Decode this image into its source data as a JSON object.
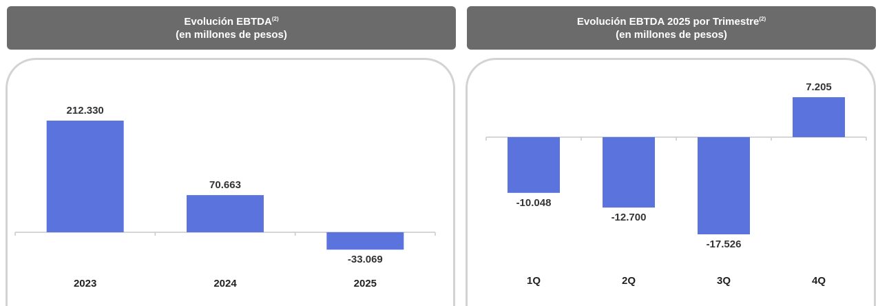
{
  "chart_data": [
    {
      "type": "bar",
      "title": "Evolución EBTDA",
      "title_sup": "(2)",
      "subtitle": "(en millones de pesos)",
      "categories": [
        "2023",
        "2024",
        "2025"
      ],
      "values": [
        212330,
        70663,
        -33069
      ],
      "value_labels": [
        "212.330",
        "70.663",
        "-33.069"
      ],
      "bar_color": "#5b73dd",
      "grid": false,
      "legend": "none"
    },
    {
      "type": "bar",
      "title": "Evolución EBTDA 2025 por Trimestre",
      "title_sup": "(2)",
      "subtitle": "(en millones de pesos)",
      "categories": [
        "1Q",
        "2Q",
        "3Q",
        "4Q"
      ],
      "values": [
        -10048,
        -12700,
        -17526,
        7205
      ],
      "value_labels": [
        "-10.048",
        "-12.700",
        "-17.526",
        "7.205"
      ],
      "bar_color": "#5b73dd",
      "grid": false,
      "legend": "none"
    }
  ]
}
